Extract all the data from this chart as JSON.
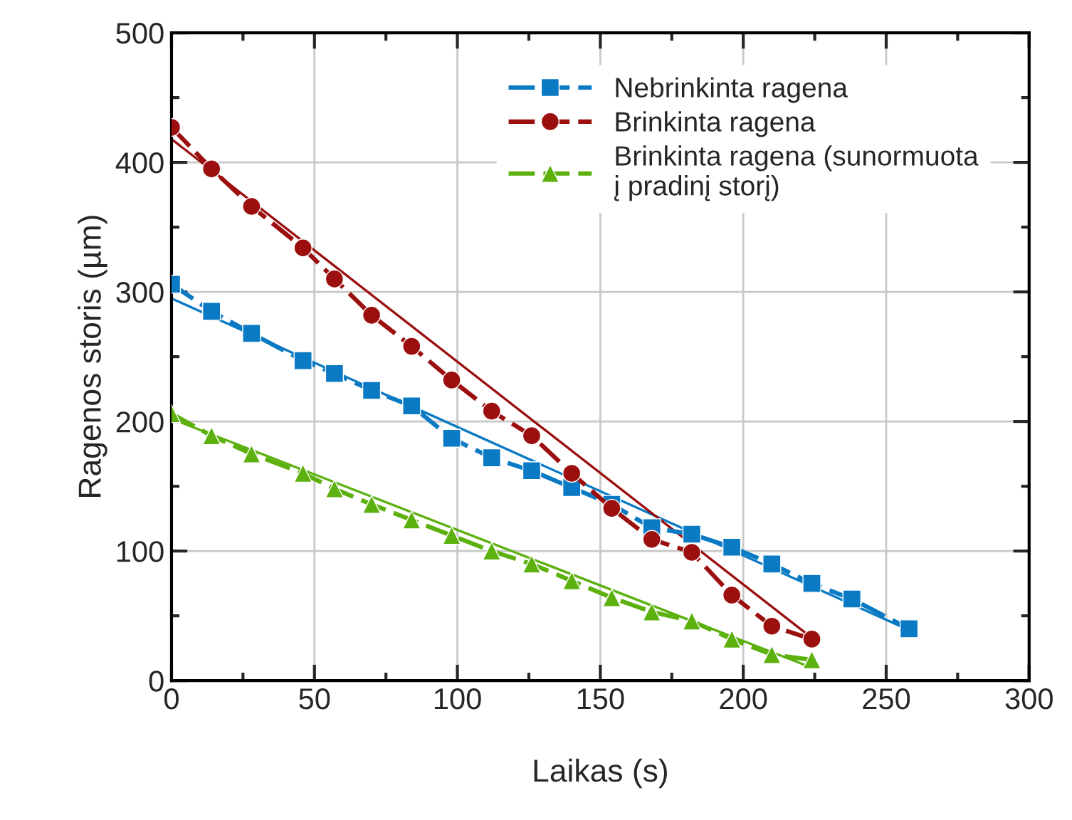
{
  "chart_data": {
    "type": "line",
    "xlabel": "Laikas (s)",
    "ylabel": "Ragenos storis (µm)",
    "xlim": [
      0,
      300
    ],
    "xticks": [
      0,
      50,
      100,
      150,
      200,
      250,
      300
    ],
    "ylim": [
      0,
      500
    ],
    "yticks": [
      0,
      100,
      200,
      300,
      400,
      500
    ],
    "grid": true,
    "legend": "top right",
    "series": [
      {
        "name": "Nebrinkinta ragena",
        "color": "#0a7ac4",
        "marker": "square",
        "line_style": "dashed",
        "x": [
          0,
          14,
          28,
          46,
          57,
          70,
          84,
          98,
          112,
          126,
          140,
          154,
          168,
          182,
          196,
          210,
          224,
          238,
          258
        ],
        "values": [
          306,
          285,
          268,
          247,
          237,
          224,
          212,
          187,
          172,
          162,
          149,
          136,
          118,
          113,
          103,
          90,
          75,
          63,
          40
        ]
      },
      {
        "name": "Brinkinta ragena",
        "color": "#9b0f0f",
        "marker": "circle",
        "line_style": "dashed",
        "x": [
          0,
          14,
          28,
          46,
          57,
          70,
          84,
          98,
          112,
          126,
          140,
          154,
          168,
          182,
          196,
          210,
          224
        ],
        "values": [
          427,
          395,
          366,
          334,
          310,
          282,
          258,
          232,
          208,
          189,
          160,
          133,
          109,
          99,
          66,
          42,
          32
        ]
      },
      {
        "name": "Brinkinta ragena (sunormuota\nį pradinį storį)",
        "color": "#5cb10e",
        "marker": "triangle",
        "line_style": "dashed",
        "x": [
          0,
          14,
          28,
          46,
          57,
          70,
          84,
          98,
          112,
          126,
          140,
          154,
          168,
          182,
          196,
          210,
          224
        ],
        "values": [
          206,
          189,
          175,
          160,
          148,
          136,
          124,
          112,
          100,
          90,
          77,
          64,
          53,
          46,
          32,
          20,
          16
        ]
      },
      {
        "color": "#0a7ac4",
        "marker": "none",
        "line_style": "solid",
        "x": [
          0,
          260
        ],
        "values": [
          295,
          37
        ]
      },
      {
        "color": "#9b0f0f",
        "marker": "none",
        "line_style": "solid",
        "x": [
          0,
          224
        ],
        "values": [
          418,
          33
        ]
      },
      {
        "color": "#5cb10e",
        "marker": "none",
        "line_style": "solid",
        "x": [
          0,
          224
        ],
        "values": [
          202,
          10
        ]
      }
    ]
  }
}
